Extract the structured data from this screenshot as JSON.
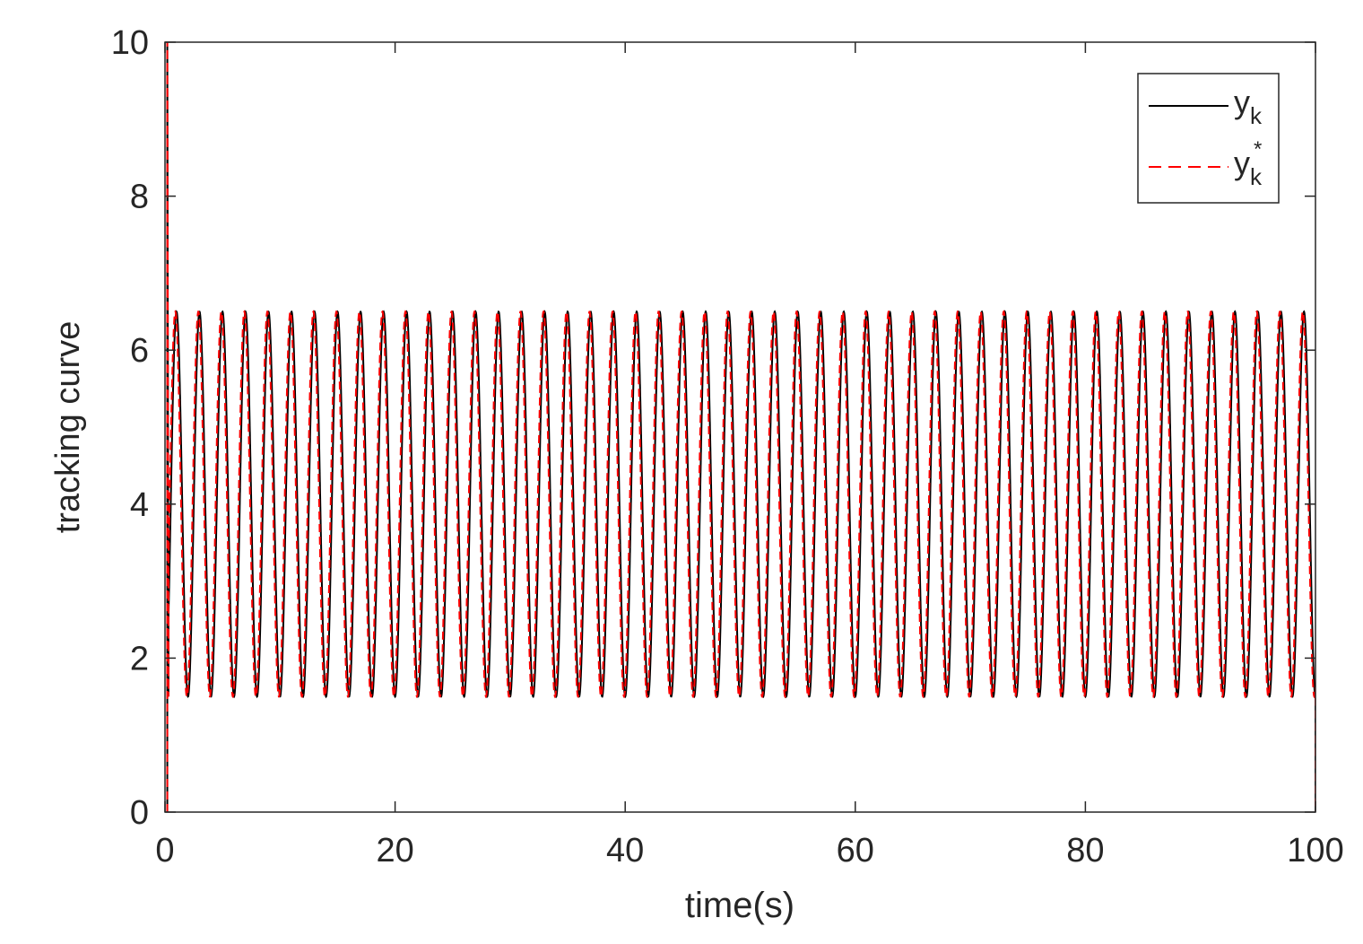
{
  "chart_data": {
    "type": "line",
    "xlabel": "time(s)",
    "ylabel": "tracking curve",
    "xlim": [
      0,
      100
    ],
    "ylim": [
      0,
      10
    ],
    "xticks": [
      0,
      20,
      40,
      60,
      80,
      100
    ],
    "yticks": [
      0,
      2,
      4,
      6,
      8,
      10
    ],
    "legend_position": "top-right",
    "series": [
      {
        "name": "y_k",
        "legend_main": "y",
        "legend_sub": "k",
        "legend_sup": "",
        "color": "#000000",
        "style": "solid",
        "signal": {
          "mean": 4.0,
          "amplitude": 2.5,
          "period": 2.0,
          "phase_deg": 0,
          "start": 0.3
        }
      },
      {
        "name": "y_k^*",
        "legend_main": "y",
        "legend_sub": "k",
        "legend_sup": "*",
        "color": "#ff0000",
        "style": "dashed",
        "signal": {
          "mean": 4.0,
          "amplitude": 2.5,
          "period": 2.0,
          "phase_deg": 18,
          "start": 0.3
        }
      }
    ]
  }
}
